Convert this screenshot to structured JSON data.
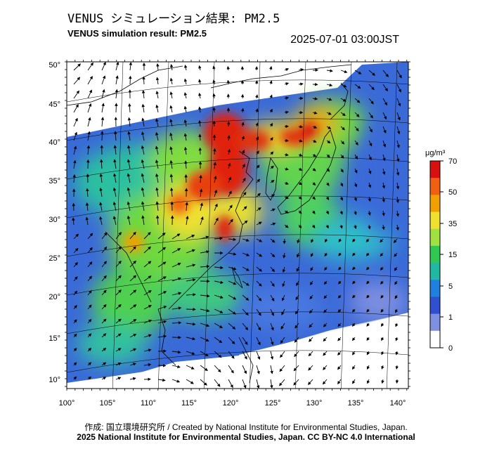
{
  "title_jp": "VENUS シミュレーション結果: PM2.5",
  "title_en": "VENUS simulation result: PM2.5",
  "timestamp": "2025-07-01 03:00JST",
  "footer": {
    "credit": "作成: 国立環境研究所 / Created by National Institute for Environmental Studies, Japan.",
    "license": "2025 National Institute for Environmental Studies, Japan. CC BY-NC 4.0 International"
  },
  "map": {
    "lon_ticks": [
      "100°",
      "105°",
      "110°",
      "115°",
      "120°",
      "125°",
      "130°",
      "135°",
      "140°"
    ],
    "lat_ticks": [
      "50°",
      "45°",
      "40°",
      "35°",
      "30°",
      "25°",
      "20°",
      "15°",
      "10°"
    ]
  },
  "colorbar": {
    "unit": "μg/m³",
    "labels": [
      "70",
      "50",
      "35",
      "15",
      "5",
      "1",
      "0"
    ],
    "colors": [
      "#d81010",
      "#f06010",
      "#f0a000",
      "#f0e030",
      "#a0e040",
      "#30c850",
      "#20b8a0",
      "#2080e0",
      "#3050d0",
      "#8090e0",
      "#ffffff"
    ]
  },
  "chart_data": {
    "type": "heatmap",
    "variable": "PM2.5",
    "unit": "μg/m³",
    "lon_range": [
      100,
      140
    ],
    "lat_range": [
      10,
      50
    ],
    "color_levels": [
      0,
      1,
      5,
      15,
      35,
      50,
      70
    ]
  }
}
